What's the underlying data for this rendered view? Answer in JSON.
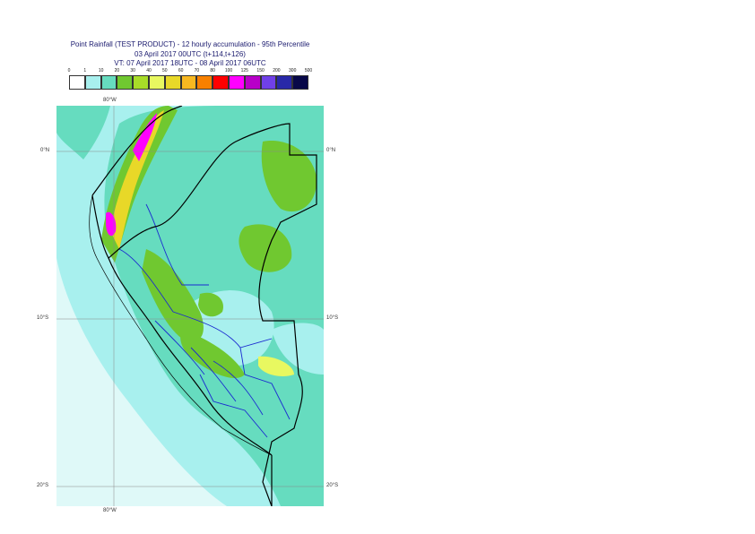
{
  "title": {
    "line1": "Point Rainfall (TEST PRODUCT) - 12 hourly accumulation - 95th Percentile",
    "line2": "03 April 2017 00UTC (t+114,t+126)",
    "line3": "VT: 07 April 2017 18UTC - 08 April 2017 06UTC"
  },
  "legend": {
    "ticks": [
      "0",
      "1",
      "10",
      "20",
      "30",
      "40",
      "50",
      "60",
      "70",
      "80",
      "100",
      "125",
      "150",
      "200",
      "300",
      "500"
    ],
    "colors": [
      "#ffffff",
      "#a8f0ee",
      "#66dcbf",
      "#70c830",
      "#a8dc28",
      "#e8f860",
      "#e8d828",
      "#f8b820",
      "#f88000",
      "#ff0000",
      "#ff00ff",
      "#b800c8",
      "#7040e8",
      "#2828a8",
      "#080848"
    ]
  },
  "axes": {
    "lon_top": "80°W",
    "lon_bottom": "80°W",
    "lat_0_left": "0°N",
    "lat_0_right": "0°N",
    "lat_10_left": "10°S",
    "lat_10_right": "10°S",
    "lat_20_left": "20°S",
    "lat_20_right": "20°S"
  }
}
